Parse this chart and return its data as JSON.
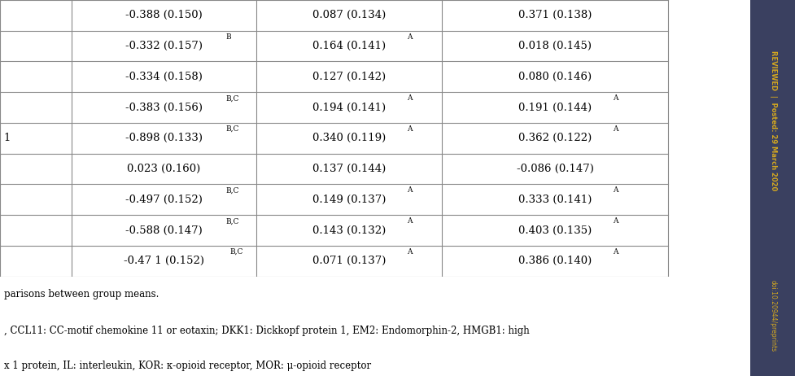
{
  "rows": [
    {
      "col1": "-0.388 (0.150)",
      "col1_sup": "",
      "col2": "0.087 (0.134)",
      "col2_sup": "",
      "col3": "0.371 (0.138)",
      "col3_sup": ""
    },
    {
      "col1": "-0.332 (0.157)",
      "col1_sup": "B",
      "col2": "0.164 (0.141)",
      "col2_sup": "A",
      "col3": "0.018 (0.145)",
      "col3_sup": ""
    },
    {
      "col1": "-0.334 (0.158)",
      "col1_sup": "",
      "col2": "0.127 (0.142)",
      "col2_sup": "",
      "col3": "0.080 (0.146)",
      "col3_sup": ""
    },
    {
      "col1": "-0.383 (0.156)",
      "col1_sup": "B,C",
      "col2": "0.194 (0.141)",
      "col2_sup": "A",
      "col3": "0.191 (0.144)",
      "col3_sup": "A"
    },
    {
      "col1": "-0.898 (0.133)",
      "col1_sup": "B,C",
      "col2": "0.340 (0.119)",
      "col2_sup": "A",
      "col3": "0.362 (0.122)",
      "col3_sup": "A"
    },
    {
      "col1": "0.023 (0.160)",
      "col1_sup": "",
      "col2": "0.137 (0.144)",
      "col2_sup": "",
      "col3": "-0.086 (0.147)",
      "col3_sup": ""
    },
    {
      "col1": "-0.497 (0.152)",
      "col1_sup": "B,C",
      "col2": "0.149 (0.137)",
      "col2_sup": "A",
      "col3": "0.333 (0.141)",
      "col3_sup": "A"
    },
    {
      "col1": "-0.588 (0.147)",
      "col1_sup": "B,C",
      "col2": "0.143 (0.132)",
      "col2_sup": "A",
      "col3": "0.403 (0.135)",
      "col3_sup": "A"
    },
    {
      "col1": "-0.47 1 (0.152)",
      "col1_sup": "B,C",
      "col2": "0.071 (0.137)",
      "col2_sup": "A",
      "col3": "0.386 (0.140)",
      "col3_sup": "A"
    }
  ],
  "row4_label": "1",
  "footer_lines": [
    "parisons between group means.",
    ", CCL11: CC-motif chemokine 11 or eotaxin; DKK1: Dickkopf protein 1, EM2: Endomorphin-2, HMGB1: high",
    "x 1 protein, IL: interleukin, KOR: κ-opioid receptor, MOR: μ-opioid receptor"
  ],
  "text_color": "#000000",
  "font_size": 9.5,
  "sup_font_size": 6.5,
  "line_color": "#888888",
  "sidebar_bg": "#3a4060",
  "sidebar_text_color": "#d4a820",
  "sidebar_reviewed": "REVIEWED  |  Posted: 29 March 2020",
  "sidebar_doi": "doi:10.20944/preprints"
}
